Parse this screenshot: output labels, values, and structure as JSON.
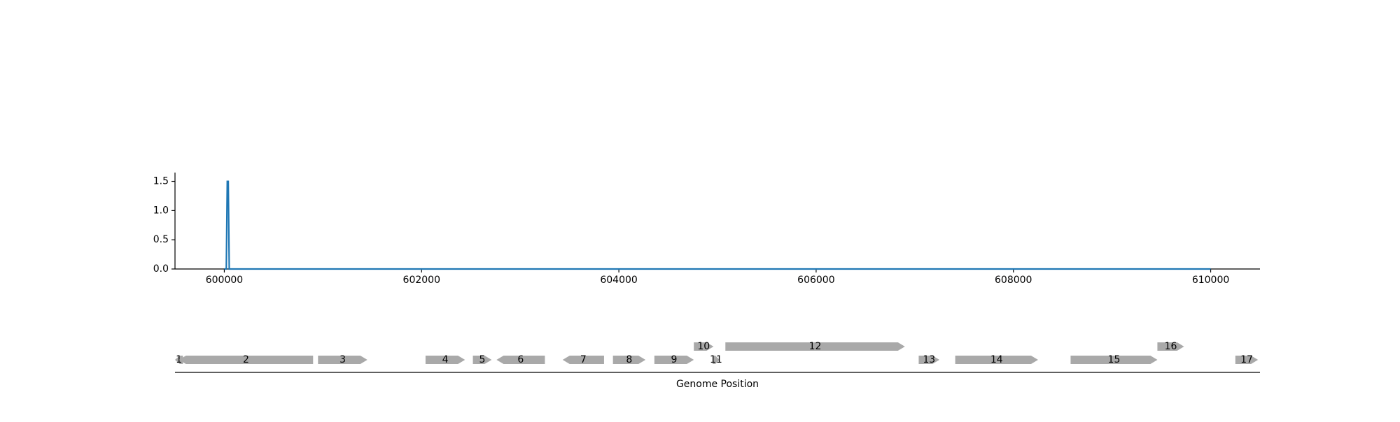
{
  "chart_data": [
    {
      "type": "line",
      "x": [
        600000,
        600020,
        600030,
        600040,
        600050,
        610000
      ],
      "series": [
        {
          "values": [
            0.0,
            0.0,
            1.5,
            1.5,
            0.0,
            0.0
          ],
          "color": "#1f77b4"
        }
      ],
      "xlim": [
        599500,
        610500
      ],
      "ylim": [
        0,
        1.65
      ],
      "xticks": [
        "600000",
        "602000",
        "604000",
        "606000",
        "608000",
        "610000"
      ],
      "yticks": [
        "0.0",
        "0.5",
        "1.0",
        "1.5"
      ],
      "xlabel": "",
      "ylabel": "",
      "grid": false
    },
    {
      "type": "gene_track",
      "xlabel": "Genome Position",
      "xlim": [
        599500,
        610500
      ],
      "feature_color": "#a9a9a9",
      "features": [
        {
          "label": "1",
          "start": 599500,
          "end": 599580,
          "strand": "-",
          "row": 0
        },
        {
          "label": "2",
          "start": 599540,
          "end": 600900,
          "strand": "-",
          "row": 0
        },
        {
          "label": "3",
          "start": 600950,
          "end": 601450,
          "strand": "+",
          "row": 0
        },
        {
          "label": "4",
          "start": 602040,
          "end": 602440,
          "strand": "+",
          "row": 0
        },
        {
          "label": "5",
          "start": 602520,
          "end": 602710,
          "strand": "+",
          "row": 0
        },
        {
          "label": "6",
          "start": 602760,
          "end": 603250,
          "strand": "-",
          "row": 0
        },
        {
          "label": "7",
          "start": 603430,
          "end": 603850,
          "strand": "-",
          "row": 0
        },
        {
          "label": "8",
          "start": 603940,
          "end": 604270,
          "strand": "+",
          "row": 0
        },
        {
          "label": "9",
          "start": 604360,
          "end": 604760,
          "strand": "+",
          "row": 0
        },
        {
          "label": "10",
          "start": 604760,
          "end": 604960,
          "strand": "+",
          "row": 1
        },
        {
          "label": "11",
          "start": 604950,
          "end": 605020,
          "strand": "+",
          "row": 0
        },
        {
          "label": "12",
          "start": 605080,
          "end": 606900,
          "strand": "+",
          "row": 1
        },
        {
          "label": "13",
          "start": 607040,
          "end": 607250,
          "strand": "+",
          "row": 0
        },
        {
          "label": "14",
          "start": 607410,
          "end": 608250,
          "strand": "+",
          "row": 0
        },
        {
          "label": "15",
          "start": 608580,
          "end": 609460,
          "strand": "+",
          "row": 0
        },
        {
          "label": "16",
          "start": 609460,
          "end": 609730,
          "strand": "+",
          "row": 1
        },
        {
          "label": "17",
          "start": 610250,
          "end": 610480,
          "strand": "+",
          "row": 0
        }
      ]
    }
  ]
}
